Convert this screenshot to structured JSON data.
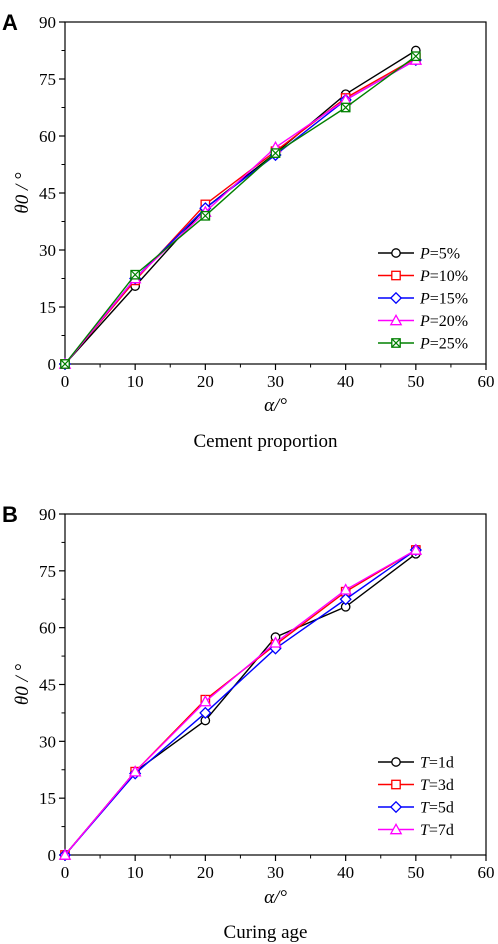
{
  "chart_data": [
    {
      "type": "line",
      "panel_label": "A",
      "caption": "Cement proportion",
      "xlabel": "α/°",
      "ylabel": "θ0 / °",
      "xlim": [
        0,
        60
      ],
      "ylim": [
        0,
        90
      ],
      "xticks": [
        "0",
        "10",
        "20",
        "30",
        "40",
        "50",
        "60"
      ],
      "yticks": [
        "0",
        "15",
        "30",
        "45",
        "60",
        "75",
        "90"
      ],
      "legend_position": "lower-right",
      "grid": false,
      "series": [
        {
          "legend_var": "P",
          "legend_value": "=5%",
          "color": "#000000",
          "marker": "circle",
          "x": [
            0,
            10,
            20,
            30,
            40,
            50
          ],
          "y": [
            0,
            20.5,
            41,
            55.5,
            71,
            82.5
          ]
        },
        {
          "legend_var": "P",
          "legend_value": "=10%",
          "color": "#ff0000",
          "marker": "square",
          "x": [
            0,
            10,
            20,
            30,
            40,
            50
          ],
          "y": [
            0,
            22,
            42,
            56,
            70,
            80.5
          ]
        },
        {
          "legend_var": "P",
          "legend_value": "=15%",
          "color": "#0000ff",
          "marker": "diamond",
          "x": [
            0,
            10,
            20,
            30,
            40,
            50
          ],
          "y": [
            0,
            22.5,
            41,
            55,
            69.5,
            80
          ]
        },
        {
          "legend_var": "P",
          "legend_value": "=20%",
          "color": "#ff00ff",
          "marker": "triangle",
          "x": [
            0,
            10,
            20,
            30,
            40,
            50
          ],
          "y": [
            0,
            22.5,
            40,
            57,
            69.5,
            80
          ]
        },
        {
          "legend_var": "P",
          "legend_value": "=25%",
          "color": "#008000",
          "marker": "crossed-box",
          "x": [
            0,
            10,
            20,
            30,
            40,
            50
          ],
          "y": [
            0,
            23.5,
            39,
            55.5,
            67.5,
            81
          ]
        }
      ]
    },
    {
      "type": "line",
      "panel_label": "B",
      "caption": "Curing age",
      "xlabel": "α/°",
      "ylabel": "θ0 / °",
      "xlim": [
        0,
        60
      ],
      "ylim": [
        0,
        90
      ],
      "xticks": [
        "0",
        "10",
        "20",
        "30",
        "40",
        "50",
        "60"
      ],
      "yticks": [
        "0",
        "15",
        "30",
        "45",
        "60",
        "75",
        "90"
      ],
      "legend_position": "lower-right",
      "grid": false,
      "series": [
        {
          "legend_var": "T",
          "legend_value": "=1d",
          "color": "#000000",
          "marker": "circle",
          "x": [
            0,
            10,
            20,
            30,
            40,
            50
          ],
          "y": [
            0,
            22,
            35.5,
            57.5,
            65.5,
            79.5
          ]
        },
        {
          "legend_var": "T",
          "legend_value": "=3d",
          "color": "#ff0000",
          "marker": "square",
          "x": [
            0,
            10,
            20,
            30,
            40,
            50
          ],
          "y": [
            0,
            22,
            41,
            55.5,
            69.5,
            80.5
          ]
        },
        {
          "legend_var": "T",
          "legend_value": "=5d",
          "color": "#0000ff",
          "marker": "diamond",
          "x": [
            0,
            10,
            20,
            30,
            40,
            50
          ],
          "y": [
            0,
            21.5,
            37.5,
            54.5,
            67.5,
            80.5
          ]
        },
        {
          "legend_var": "T",
          "legend_value": "=7d",
          "color": "#ff00ff",
          "marker": "triangle",
          "x": [
            0,
            10,
            20,
            30,
            40,
            50
          ],
          "y": [
            0,
            22,
            40.5,
            56,
            70,
            80.5
          ]
        }
      ]
    }
  ]
}
